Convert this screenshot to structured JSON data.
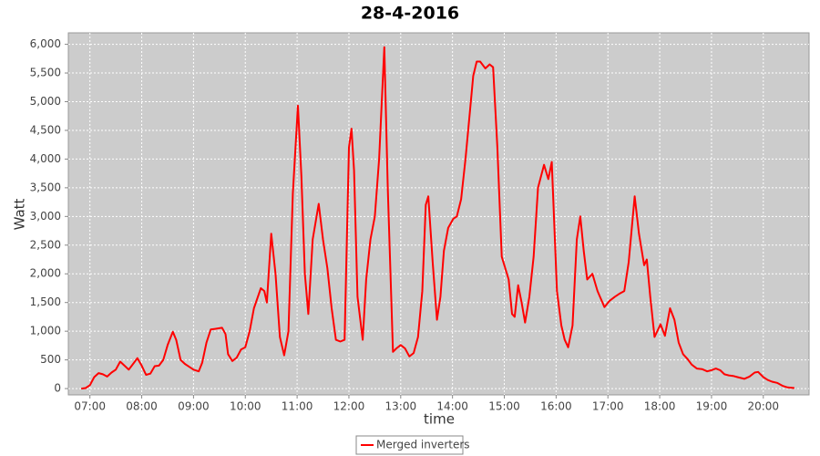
{
  "chart_data": {
    "type": "line",
    "title": "28-4-2016",
    "x_label": "time",
    "y_label": "Watt",
    "x": [
      "06:50",
      "06:55",
      "07:00",
      "07:05",
      "07:10",
      "07:15",
      "07:20",
      "07:25",
      "07:30",
      "07:35",
      "07:40",
      "07:45",
      "07:50",
      "07:55",
      "08:00",
      "08:05",
      "08:10",
      "08:15",
      "08:20",
      "08:25",
      "08:30",
      "08:36",
      "08:40",
      "08:45",
      "08:50",
      "08:55",
      "09:00",
      "09:06",
      "09:10",
      "09:15",
      "09:20",
      "09:25",
      "09:33",
      "09:37",
      "09:40",
      "09:45",
      "09:50",
      "09:55",
      "10:00",
      "10:05",
      "10:10",
      "10:18",
      "10:22",
      "10:25",
      "10:30",
      "10:35",
      "10:40",
      "10:45",
      "10:50",
      "10:55",
      "11:01",
      "11:05",
      "11:09",
      "11:13",
      "11:18",
      "11:25",
      "11:30",
      "11:35",
      "11:40",
      "11:45",
      "11:50",
      "11:55",
      "12:00",
      "12:03",
      "12:06",
      "12:10",
      "12:16",
      "12:20",
      "12:25",
      "12:30",
      "12:35",
      "12:41",
      "12:45",
      "12:51",
      "12:55",
      "13:00",
      "13:05",
      "13:10",
      "13:15",
      "13:20",
      "13:25",
      "13:29",
      "13:32",
      "13:37",
      "13:42",
      "13:46",
      "13:50",
      "13:55",
      "14:01",
      "14:05",
      "14:10",
      "14:15",
      "14:20",
      "14:24",
      "14:28",
      "14:32",
      "14:38",
      "14:43",
      "14:47",
      "14:52",
      "14:57",
      "15:01",
      "15:05",
      "15:09",
      "15:12",
      "15:16",
      "15:20",
      "15:24",
      "15:29",
      "15:34",
      "15:39",
      "15:46",
      "15:51",
      "15:55",
      "16:01",
      "16:06",
      "16:10",
      "16:14",
      "16:19",
      "16:24",
      "16:28",
      "16:32",
      "16:36",
      "16:42",
      "16:48",
      "16:56",
      "17:02",
      "17:08",
      "17:13",
      "17:19",
      "17:24",
      "17:31",
      "17:36",
      "17:42",
      "17:45",
      "17:49",
      "17:54",
      "18:01",
      "18:06",
      "18:12",
      "18:17",
      "18:22",
      "18:27",
      "18:32",
      "18:37",
      "18:43",
      "18:49",
      "18:55",
      "19:00",
      "19:05",
      "19:10",
      "19:15",
      "19:20",
      "19:25",
      "19:30",
      "19:38",
      "19:44",
      "19:50",
      "19:54",
      "20:00",
      "20:05",
      "20:10",
      "20:16",
      "20:22",
      "20:28",
      "20:36"
    ],
    "series": [
      {
        "name": "Merged inverters",
        "color": "#ff0000",
        "values": [
          0,
          10,
          60,
          200,
          270,
          250,
          210,
          280,
          330,
          470,
          400,
          330,
          430,
          530,
          400,
          240,
          260,
          390,
          400,
          500,
          760,
          990,
          850,
          500,
          430,
          380,
          330,
          300,
          450,
          800,
          1030,
          1040,
          1060,
          950,
          600,
          480,
          540,
          680,
          720,
          1000,
          1400,
          1750,
          1700,
          1500,
          2700,
          2000,
          900,
          580,
          1000,
          3400,
          4930,
          3700,
          2000,
          1300,
          2600,
          3220,
          2600,
          2100,
          1400,
          850,
          820,
          850,
          4200,
          4530,
          3800,
          1600,
          850,
          1900,
          2600,
          3000,
          4000,
          5950,
          3500,
          640,
          700,
          760,
          700,
          560,
          620,
          900,
          1700,
          3200,
          3350,
          2200,
          1200,
          1600,
          2400,
          2800,
          2960,
          3000,
          3300,
          4000,
          4800,
          5450,
          5700,
          5700,
          5580,
          5650,
          5600,
          4200,
          2300,
          2100,
          1900,
          1300,
          1250,
          1800,
          1500,
          1150,
          1600,
          2300,
          3500,
          3900,
          3650,
          3950,
          1700,
          1100,
          850,
          720,
          1100,
          2600,
          3000,
          2400,
          1900,
          2000,
          1700,
          1420,
          1530,
          1600,
          1650,
          1700,
          2200,
          3350,
          2700,
          2150,
          2250,
          1600,
          900,
          1120,
          920,
          1400,
          1200,
          800,
          600,
          520,
          420,
          350,
          340,
          300,
          320,
          350,
          320,
          250,
          230,
          220,
          200,
          170,
          210,
          280,
          290,
          200,
          150,
          120,
          100,
          50,
          20,
          10
        ]
      }
    ],
    "xlim": [
      "06:35",
      "20:53"
    ],
    "xticks": [
      "07:00",
      "08:00",
      "09:00",
      "10:00",
      "11:00",
      "12:00",
      "13:00",
      "14:00",
      "15:00",
      "16:00",
      "17:00",
      "18:00",
      "19:00",
      "20:00"
    ],
    "ylim": [
      -110,
      6200
    ],
    "yticks": [
      0,
      500,
      {
        "value": 1000,
        "label": "1,000"
      },
      {
        "value": 1500,
        "label": "1,500"
      },
      {
        "value": 2000,
        "label": "2,000"
      },
      {
        "value": 2500,
        "label": "2,500"
      },
      {
        "value": 3000,
        "label": "3,000"
      },
      {
        "value": 3500,
        "label": "3,500"
      },
      {
        "value": 4000,
        "label": "4,000"
      },
      {
        "value": 4500,
        "label": "4,500"
      },
      {
        "value": 5000,
        "label": "5,000"
      },
      {
        "value": 5500,
        "label": "5,500"
      },
      {
        "value": 6000,
        "label": "6,000"
      }
    ],
    "grid": true
  }
}
